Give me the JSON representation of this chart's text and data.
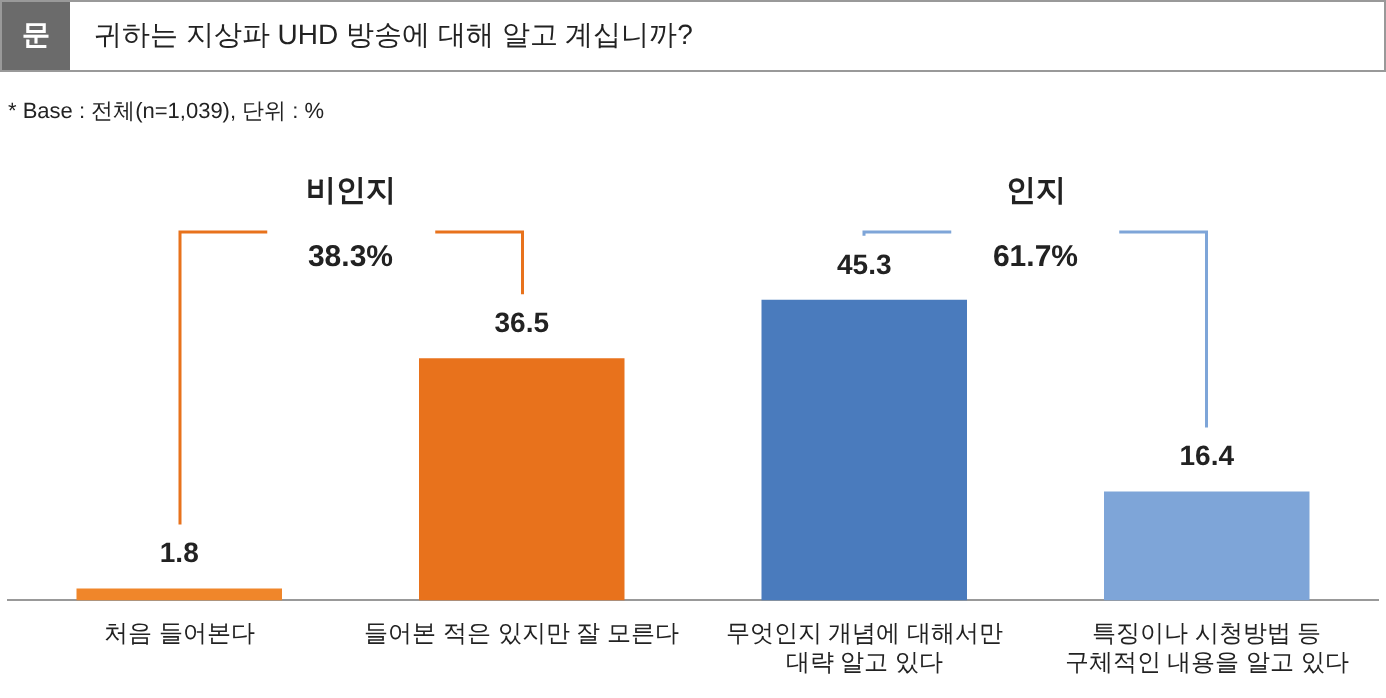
{
  "chart_data": {
    "type": "bar",
    "title": "귀하는 지상파 UHD 방송에 대해 알고 계십니까?",
    "subtitle": "* Base : 전체(n=1,039), 단위 : %",
    "categories": [
      "처음 들어본다",
      "들어본 적은 있지만 잘 모른다",
      "무엇인지 개념에 대해서만 대략 알고 있다",
      "특징이나 시청방법 등 구체적인 내용을 알고 있다"
    ],
    "values": [
      1.8,
      36.5,
      45.3,
      16.4
    ],
    "colors": [
      "#f0862a",
      "#e8721c",
      "#4a7bbd",
      "#7ea5d8"
    ],
    "data_labels": true,
    "annotations": [
      "문",
      "비인지",
      "38.3%",
      "인지",
      "61.7%"
    ],
    "grid": false,
    "legend": false
  }
}
